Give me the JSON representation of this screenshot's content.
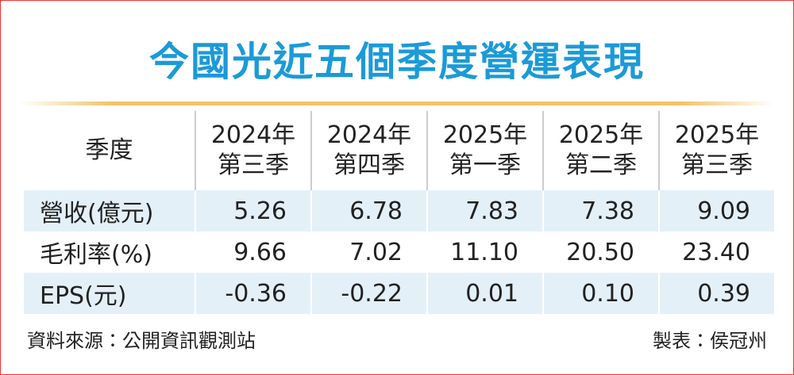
{
  "title": "今國光近五個季度營運表現",
  "table": {
    "header": {
      "label": "季度",
      "columns": [
        {
          "line1": "2024年",
          "line2": "第三季"
        },
        {
          "line1": "2024年",
          "line2": "第四季"
        },
        {
          "line1": "2025年",
          "line2": "第一季"
        },
        {
          "line1": "2025年",
          "line2": "第二季"
        },
        {
          "line1": "2025年",
          "line2": "第三季"
        }
      ]
    },
    "rows": [
      [
        "營收(億元)",
        "5.26",
        "6.78",
        "7.83",
        "7.38",
        "9.09"
      ],
      [
        "毛利率(%)",
        "9.66",
        "7.02",
        "11.10",
        "20.50",
        "23.40"
      ],
      [
        "EPS(元)",
        "-0.36",
        "-0.22",
        "0.01",
        "0.10",
        "0.39"
      ]
    ]
  },
  "footer": {
    "source": "資料來源：公開資訊觀測站",
    "author": "製表：侯冠州"
  }
}
